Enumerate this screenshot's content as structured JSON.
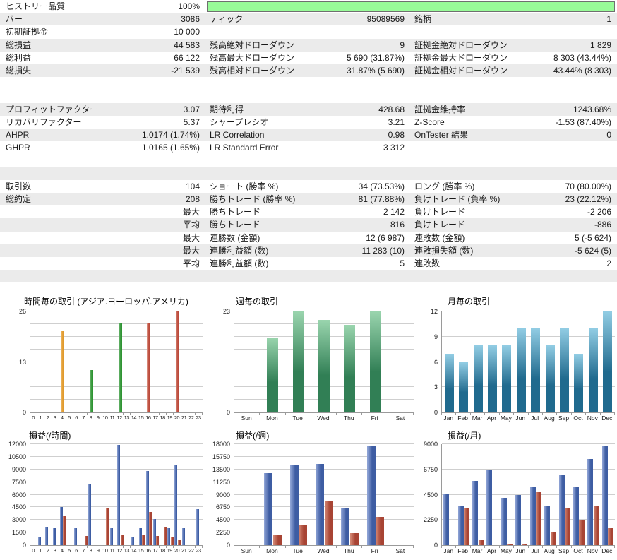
{
  "report_name": "strategy-tester-backtest-report",
  "colors": {
    "row_stripe": "#ebebeb",
    "history_quality_fill": "#98fb98",
    "history_quality_border": "#6f6f6f",
    "grid_line": "#cfcfcf",
    "axis_line": "#9a9a9a",
    "bar_orange": {
      "light": "#f3c377",
      "dark": "#e09a2e"
    },
    "bar_green": {
      "light": "#86c389",
      "dark": "#2f9433"
    },
    "bar_red": {
      "light": "#dc9181",
      "dark": "#bb4a3b"
    },
    "bar_green_vertical": {
      "light": "#9ad5ae",
      "dark": "#317f55"
    },
    "bar_blue_vertical": {
      "light": "#92cde4",
      "dark": "#206a8e"
    },
    "bar_profit_blue": {
      "light": "#93a7d8",
      "dark": "#3e5da3"
    },
    "bar_loss_red": {
      "light": "#d58b77",
      "dark": "#a84434"
    }
  },
  "stats_rows": [
    {
      "cells": [
        "ヒストリー品質",
        "100%",
        "",
        "",
        "",
        ""
      ],
      "shade": false,
      "progress": true
    },
    {
      "cells": [
        "バー",
        "3086",
        "ティック",
        "95089569",
        "銘柄",
        "1"
      ],
      "shade": true
    },
    {
      "cells": [
        "初期証拠金",
        "10 000",
        "",
        "",
        "",
        ""
      ],
      "shade": false
    },
    {
      "cells": [
        "総損益",
        "44 583",
        "残高絶対ドローダウン",
        "9",
        "証拠金絶対ドローダウン",
        "1 829"
      ],
      "shade": true
    },
    {
      "cells": [
        "総利益",
        "66 122",
        "残高最大ドローダウン",
        "5 690 (31.87%)",
        "証拠金最大ドローダウン",
        "8 303 (43.44%)"
      ],
      "shade": false
    },
    {
      "cells": [
        "総損失",
        "-21 539",
        "残高相対ドローダウン",
        "31.87% (5 690)",
        "証拠金相対ドローダウン",
        "43.44% (8 303)"
      ],
      "shade": true
    },
    {
      "cells": [
        "",
        "",
        "",
        "",
        "",
        ""
      ],
      "shade": false
    },
    {
      "cells": [
        "",
        "",
        "",
        "",
        "",
        ""
      ],
      "shade": false
    },
    {
      "cells": [
        "プロフィットファクター",
        "3.07",
        "期待利得",
        "428.68",
        "証拠金維持率",
        "1243.68%"
      ],
      "shade": true
    },
    {
      "cells": [
        "リカバリファクター",
        "5.37",
        "シャープレシオ",
        "3.21",
        "Z-Score",
        "-1.53 (87.40%)"
      ],
      "shade": false
    },
    {
      "cells": [
        "AHPR",
        "1.0174 (1.74%)",
        "LR Correlation",
        "0.98",
        "OnTester 結果",
        "0"
      ],
      "shade": true
    },
    {
      "cells": [
        "GHPR",
        "1.0165 (1.65%)",
        "LR Standard Error",
        "3 312",
        "",
        ""
      ],
      "shade": false
    },
    {
      "cells": [
        "",
        "",
        "",
        "",
        "",
        ""
      ],
      "shade": false
    },
    {
      "cells": [
        "",
        "",
        "",
        "",
        "",
        ""
      ],
      "shade": true
    },
    {
      "cells": [
        "取引数",
        "104",
        "ショート (勝率 %)",
        "34 (73.53%)",
        "ロング (勝率 %)",
        "70 (80.00%)"
      ],
      "shade": false
    },
    {
      "cells": [
        "総約定",
        "208",
        "勝ちトレード (勝率 %)",
        "81 (77.88%)",
        "負けトレード (負率 %)",
        "23 (22.12%)"
      ],
      "shade": true
    },
    {
      "cells": [
        "",
        "最大",
        "勝ちトレード",
        "2 142",
        "負けトレード",
        "-2 206"
      ],
      "shade": false
    },
    {
      "cells": [
        "",
        "平均",
        "勝ちトレード",
        "816",
        "負けトレード",
        "-886"
      ],
      "shade": true
    },
    {
      "cells": [
        "",
        "最大",
        "連勝数 (金額)",
        "12 (6 987)",
        "連敗数 (金額)",
        "5 (-5 624)"
      ],
      "shade": false
    },
    {
      "cells": [
        "",
        "最大",
        "連勝利益額 (数)",
        "11 283 (10)",
        "連敗損失額 (数)",
        "-5 624 (5)"
      ],
      "shade": true
    },
    {
      "cells": [
        "",
        "平均",
        "連勝利益額 (数)",
        "5",
        "連敗数",
        "2"
      ],
      "shade": false
    },
    {
      "cells": [
        "",
        "",
        "",
        "",
        "",
        ""
      ],
      "shade": true
    }
  ],
  "chart_data": [
    {
      "id": "trades-by-hour",
      "type": "bar",
      "title": "時間毎の取引 (アジア.ヨーロッパ.アメリカ)",
      "categories": [
        "0",
        "1",
        "2",
        "3",
        "4",
        "5",
        "6",
        "7",
        "8",
        "9",
        "10",
        "11",
        "12",
        "13",
        "14",
        "15",
        "16",
        "17",
        "18",
        "19",
        "20",
        "21",
        "22",
        "23"
      ],
      "values": [
        0,
        0,
        0,
        0,
        21,
        0,
        0,
        0,
        11,
        0,
        0,
        0,
        23,
        0,
        0,
        0,
        23,
        0,
        0,
        0,
        26,
        0,
        0,
        0
      ],
      "bar_colors": [
        "",
        "",
        "",
        "",
        "orange",
        "",
        "",
        "",
        "green",
        "",
        "",
        "",
        "green",
        "",
        "",
        "",
        "red",
        "",
        "",
        "",
        "red",
        "",
        "",
        ""
      ],
      "ylim": [
        0,
        26
      ],
      "yticks": [
        0,
        13,
        26
      ],
      "grid_step": 3.25,
      "legend": "none",
      "grid": true
    },
    {
      "id": "trades-by-weekday",
      "type": "bar",
      "title": "週毎の取引",
      "categories": [
        "Sun",
        "Mon",
        "Tue",
        "Wed",
        "Thu",
        "Fri",
        "Sat"
      ],
      "values": [
        0,
        17,
        23,
        21,
        20,
        23,
        0
      ],
      "ylim": [
        0,
        23
      ],
      "yticks": [
        0,
        23
      ],
      "grid_step": 2.875,
      "legend": "none",
      "grid": true
    },
    {
      "id": "trades-by-month",
      "type": "bar",
      "title": "月毎の取引",
      "categories": [
        "Jan",
        "Feb",
        "Mar",
        "Apr",
        "May",
        "Jun",
        "Jul",
        "Aug",
        "Sep",
        "Oct",
        "Nov",
        "Dec"
      ],
      "values": [
        7,
        6,
        8,
        8,
        8,
        10,
        10,
        8,
        10,
        7,
        10,
        12
      ],
      "ylim": [
        0,
        12
      ],
      "yticks": [
        0,
        3,
        6,
        9,
        12
      ],
      "grid_step": 3,
      "legend": "none",
      "grid": true
    },
    {
      "id": "profit-loss-by-hour",
      "type": "bar",
      "title": "損益(/時間)",
      "categories": [
        "0",
        "1",
        "2",
        "3",
        "4",
        "5",
        "6",
        "7",
        "8",
        "9",
        "10",
        "11",
        "12",
        "13",
        "14",
        "15",
        "16",
        "17",
        "18",
        "19",
        "20",
        "21",
        "22",
        "23"
      ],
      "series": [
        {
          "name": "profit",
          "values": [
            0,
            1000,
            2150,
            2050,
            4550,
            0,
            2050,
            0,
            7200,
            0,
            0,
            2100,
            11950,
            0,
            1050,
            2100,
            8850,
            3100,
            0,
            2100,
            9450,
            2100,
            0,
            4250
          ]
        },
        {
          "name": "loss",
          "values": [
            0,
            0,
            0,
            0,
            3400,
            0,
            0,
            1100,
            0,
            0,
            4450,
            0,
            1300,
            0,
            0,
            1150,
            3950,
            1100,
            2200,
            1050,
            650,
            0,
            0,
            0
          ]
        }
      ],
      "ylim": [
        0,
        12000
      ],
      "yticks": [
        0,
        1500,
        3000,
        4500,
        6000,
        7500,
        9000,
        10500,
        12000
      ],
      "grid_step": 1500,
      "legend": "none",
      "grid": true
    },
    {
      "id": "profit-loss-by-weekday",
      "type": "bar",
      "title": "損益(/週)",
      "categories": [
        "Sun",
        "Mon",
        "Tue",
        "Wed",
        "Thu",
        "Fri",
        "Sat"
      ],
      "series": [
        {
          "name": "profit",
          "values": [
            0,
            12900,
            14400,
            14500,
            6650,
            17800,
            0
          ]
        },
        {
          "name": "loss",
          "values": [
            0,
            1800,
            3650,
            7850,
            2200,
            5000,
            0
          ]
        }
      ],
      "ylim": [
        0,
        18000
      ],
      "yticks": [
        0,
        2250,
        4500,
        6750,
        9000,
        11250,
        13500,
        15750,
        18000
      ],
      "grid_step": 2250,
      "legend": "none",
      "grid": true
    },
    {
      "id": "profit-loss-by-month",
      "type": "bar",
      "title": "損益(/月)",
      "categories": [
        "Jan",
        "Feb",
        "Mar",
        "Apr",
        "May",
        "Jun",
        "Jul",
        "Aug",
        "Sep",
        "Oct",
        "Nov",
        "Dec"
      ],
      "series": [
        {
          "name": "profit",
          "values": [
            4550,
            3550,
            5750,
            6700,
            4200,
            4480,
            5250,
            3450,
            6250,
            5150,
            7700,
            8850
          ]
        },
        {
          "name": "loss",
          "values": [
            0,
            3300,
            500,
            0,
            150,
            50,
            4700,
            1150,
            3350,
            2250,
            3500,
            1550
          ]
        }
      ],
      "ylim": [
        0,
        9000
      ],
      "yticks": [
        0,
        2250,
        4500,
        6750,
        9000
      ],
      "grid_step": 2250,
      "legend": "none",
      "grid": true
    }
  ]
}
